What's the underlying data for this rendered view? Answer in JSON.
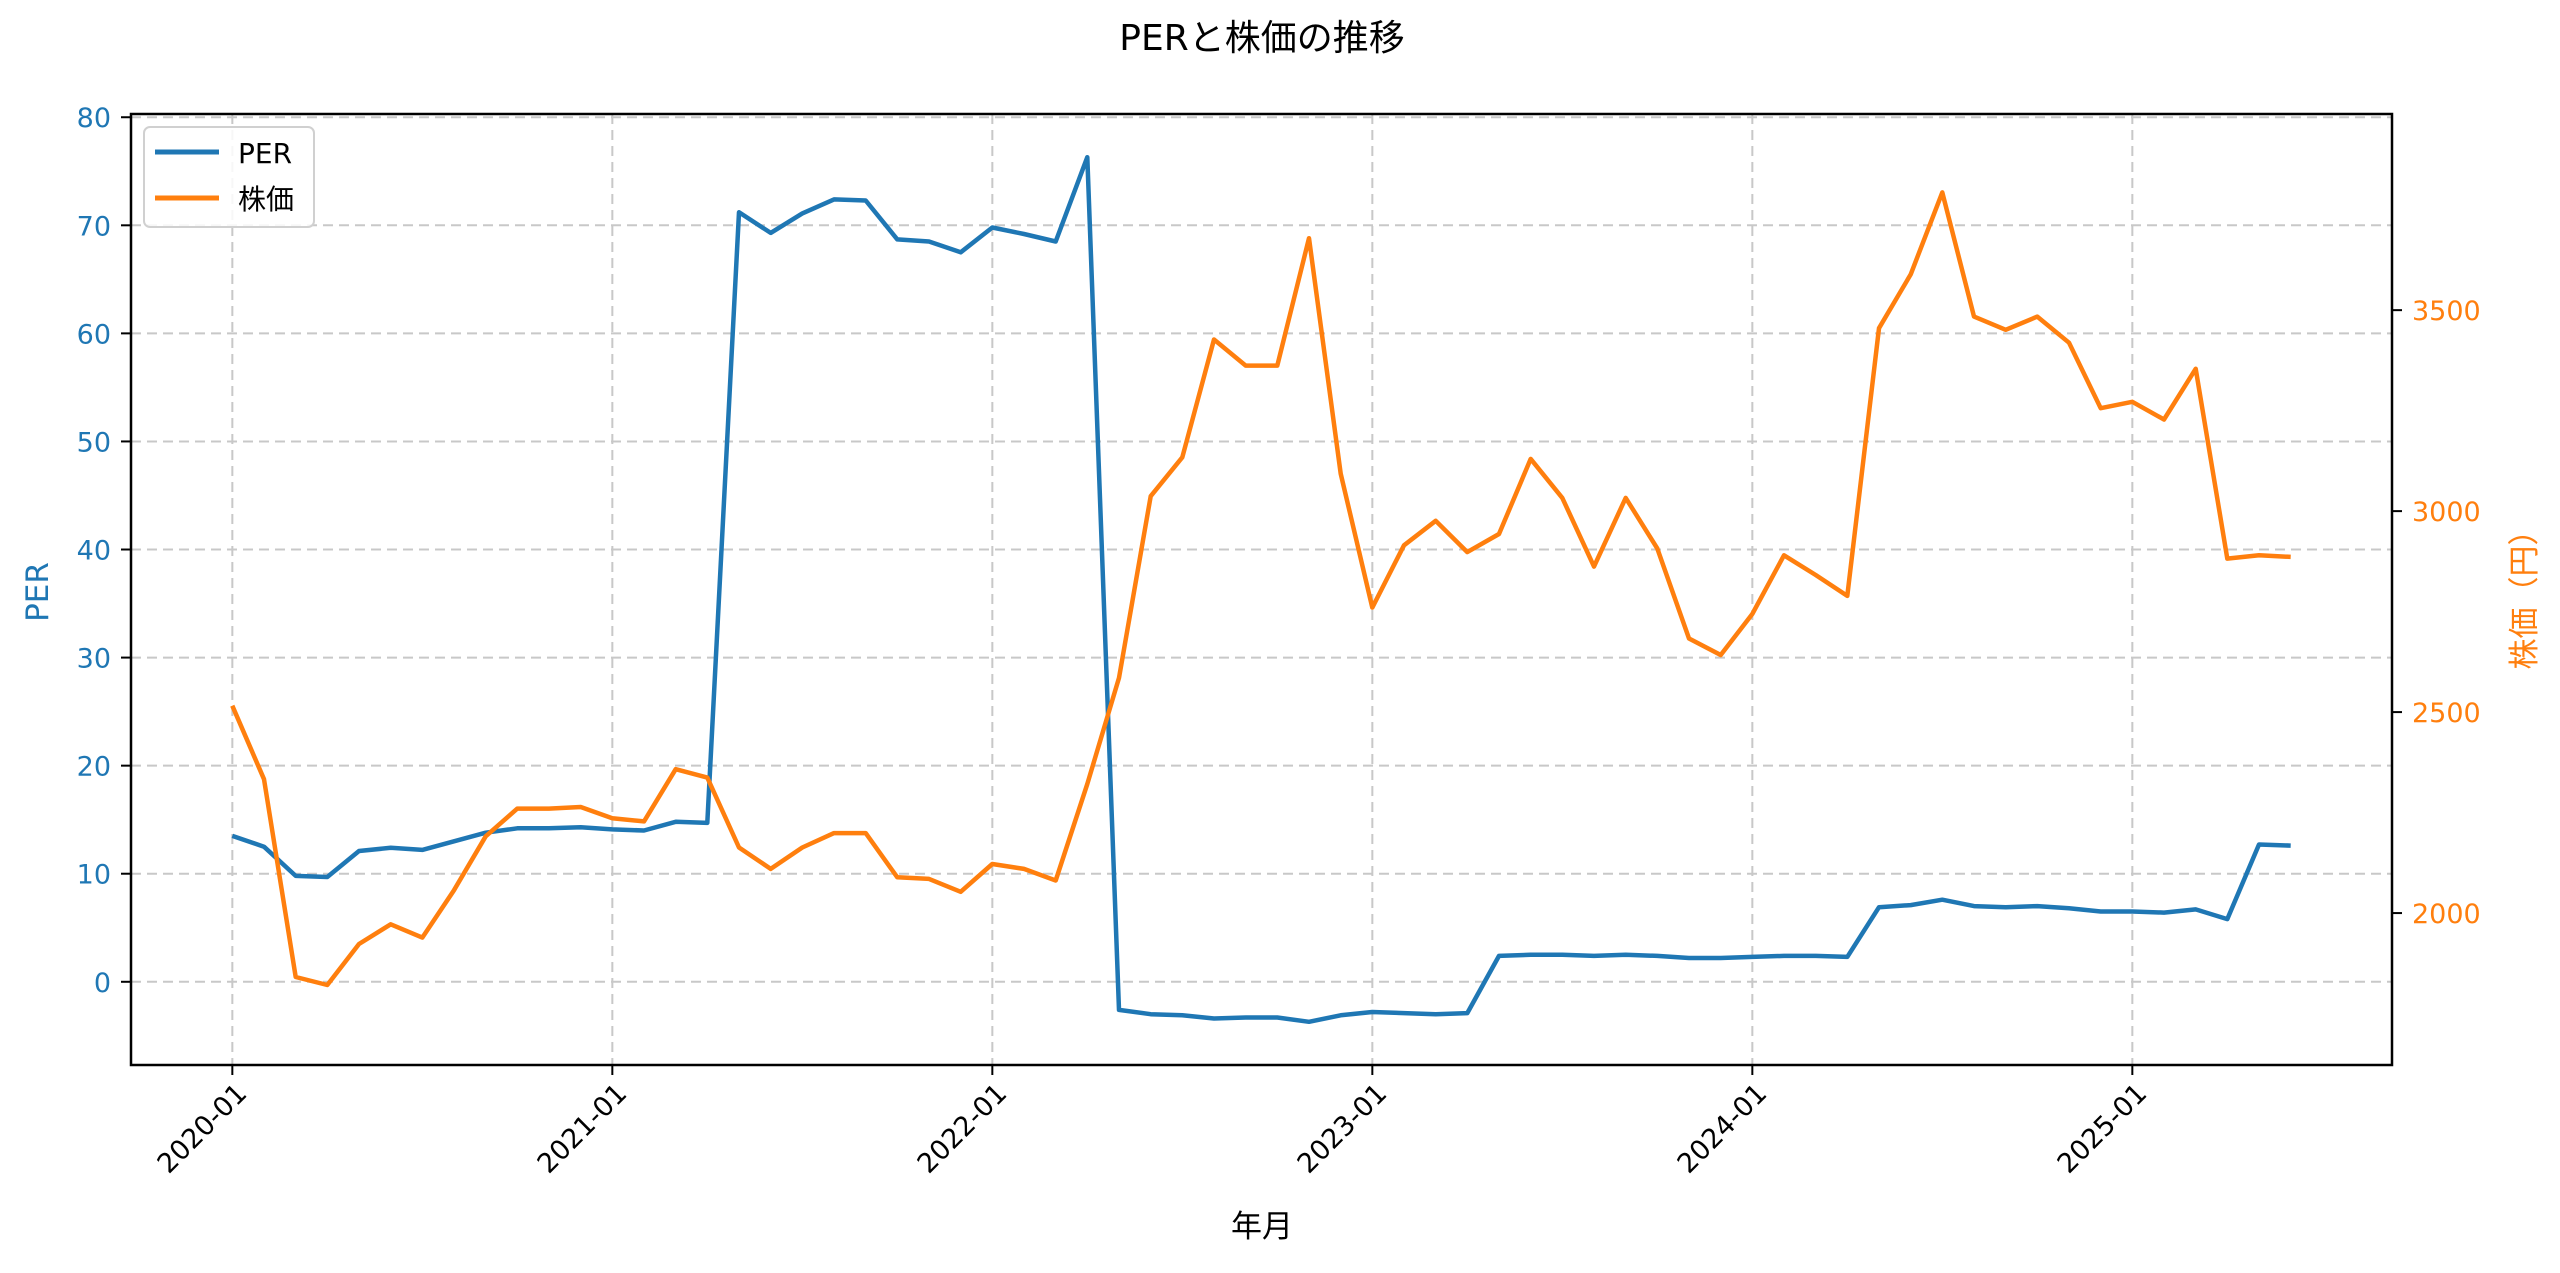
{
  "chart_data": {
    "type": "line",
    "title": "PERと株価の推移",
    "xlabel": "年月",
    "ylabel_left": "PER",
    "ylabel_right": "株価（円）",
    "x_ticks": [
      "2020-01",
      "2021-01",
      "2022-01",
      "2023-01",
      "2024-01",
      "2025-01"
    ],
    "y_left_ticks": [
      0,
      10,
      20,
      30,
      40,
      50,
      60,
      70,
      80
    ],
    "y_right_ticks": [
      2000,
      2500,
      3000,
      3500
    ],
    "ylim_left": [
      -7.7,
      80.3
    ],
    "ylim_right": [
      1622,
      3988
    ],
    "xlim_index": [
      -3.2,
      68.2
    ],
    "grid": true,
    "legend_position": "upper left",
    "x": [
      "2020-01",
      "2020-02",
      "2020-03",
      "2020-04",
      "2020-05",
      "2020-06",
      "2020-07",
      "2020-08",
      "2020-09",
      "2020-10",
      "2020-11",
      "2020-12",
      "2021-01",
      "2021-02",
      "2021-03",
      "2021-04",
      "2021-05",
      "2021-06",
      "2021-07",
      "2021-08",
      "2021-09",
      "2021-10",
      "2021-11",
      "2021-12",
      "2022-01",
      "2022-02",
      "2022-03",
      "2022-04",
      "2022-05",
      "2022-06",
      "2022-07",
      "2022-08",
      "2022-09",
      "2022-10",
      "2022-11",
      "2022-12",
      "2023-01",
      "2023-02",
      "2023-03",
      "2023-04",
      "2023-05",
      "2023-06",
      "2023-07",
      "2023-08",
      "2023-09",
      "2023-10",
      "2023-11",
      "2023-12",
      "2024-01",
      "2024-02",
      "2024-03",
      "2024-04",
      "2024-05",
      "2024-06",
      "2024-07",
      "2024-08",
      "2024-09",
      "2024-10",
      "2024-11",
      "2024-12",
      "2025-01",
      "2025-02",
      "2025-03",
      "2025-04",
      "2025-05",
      "2025-06"
    ],
    "series": [
      {
        "name": "PER",
        "axis": "left",
        "color": "#1f77b4",
        "values": [
          13.5,
          12.5,
          9.8,
          9.7,
          12.1,
          12.4,
          12.2,
          13.0,
          13.8,
          14.2,
          14.2,
          14.3,
          14.1,
          14.0,
          14.8,
          14.7,
          71.2,
          69.3,
          71.1,
          72.4,
          72.3,
          68.7,
          68.5,
          67.5,
          69.8,
          69.2,
          68.5,
          76.3,
          -2.6,
          -3.0,
          -3.1,
          -3.4,
          -3.3,
          -3.3,
          -3.7,
          -3.1,
          -2.8,
          -2.9,
          -3.0,
          -2.9,
          2.4,
          2.5,
          2.5,
          2.4,
          2.5,
          2.4,
          2.2,
          2.2,
          2.3,
          2.4,
          2.4,
          2.3,
          6.9,
          7.1,
          7.6,
          7.0,
          6.9,
          7.0,
          6.8,
          6.5,
          6.5,
          6.4,
          6.7,
          5.8,
          12.7,
          12.6
        ]
      },
      {
        "name": "株価",
        "axis": "right",
        "color": "#ff7f0e",
        "values": [
          2516,
          2333,
          1841,
          1821,
          1923,
          1972,
          1939,
          2057,
          2191,
          2260,
          2260,
          2264,
          2236,
          2228,
          2358,
          2337,
          2163,
          2110,
          2163,
          2199,
          2199,
          2089,
          2085,
          2053,
          2122,
          2110,
          2081,
          2321,
          2585,
          3037,
          3134,
          3427,
          3362,
          3362,
          3679,
          3093,
          2760,
          2915,
          2976,
          2898,
          2943,
          3130,
          3033,
          2862,
          3033,
          2907,
          2683,
          2642,
          2744,
          2890,
          2841,
          2789,
          3455,
          3589,
          3793,
          3484,
          3451,
          3484,
          3419,
          3256,
          3272,
          3228,
          3354,
          2882,
          2890,
          2886
        ]
      }
    ]
  },
  "legend": {
    "items": [
      {
        "label": "PER",
        "color": "#1f77b4"
      },
      {
        "label": "株価",
        "color": "#ff7f0e"
      }
    ]
  },
  "colors": {
    "left_axis": "#1f77b4",
    "right_axis": "#ff7f0e",
    "grid": "#c8c8c8",
    "frame": "#000000"
  }
}
